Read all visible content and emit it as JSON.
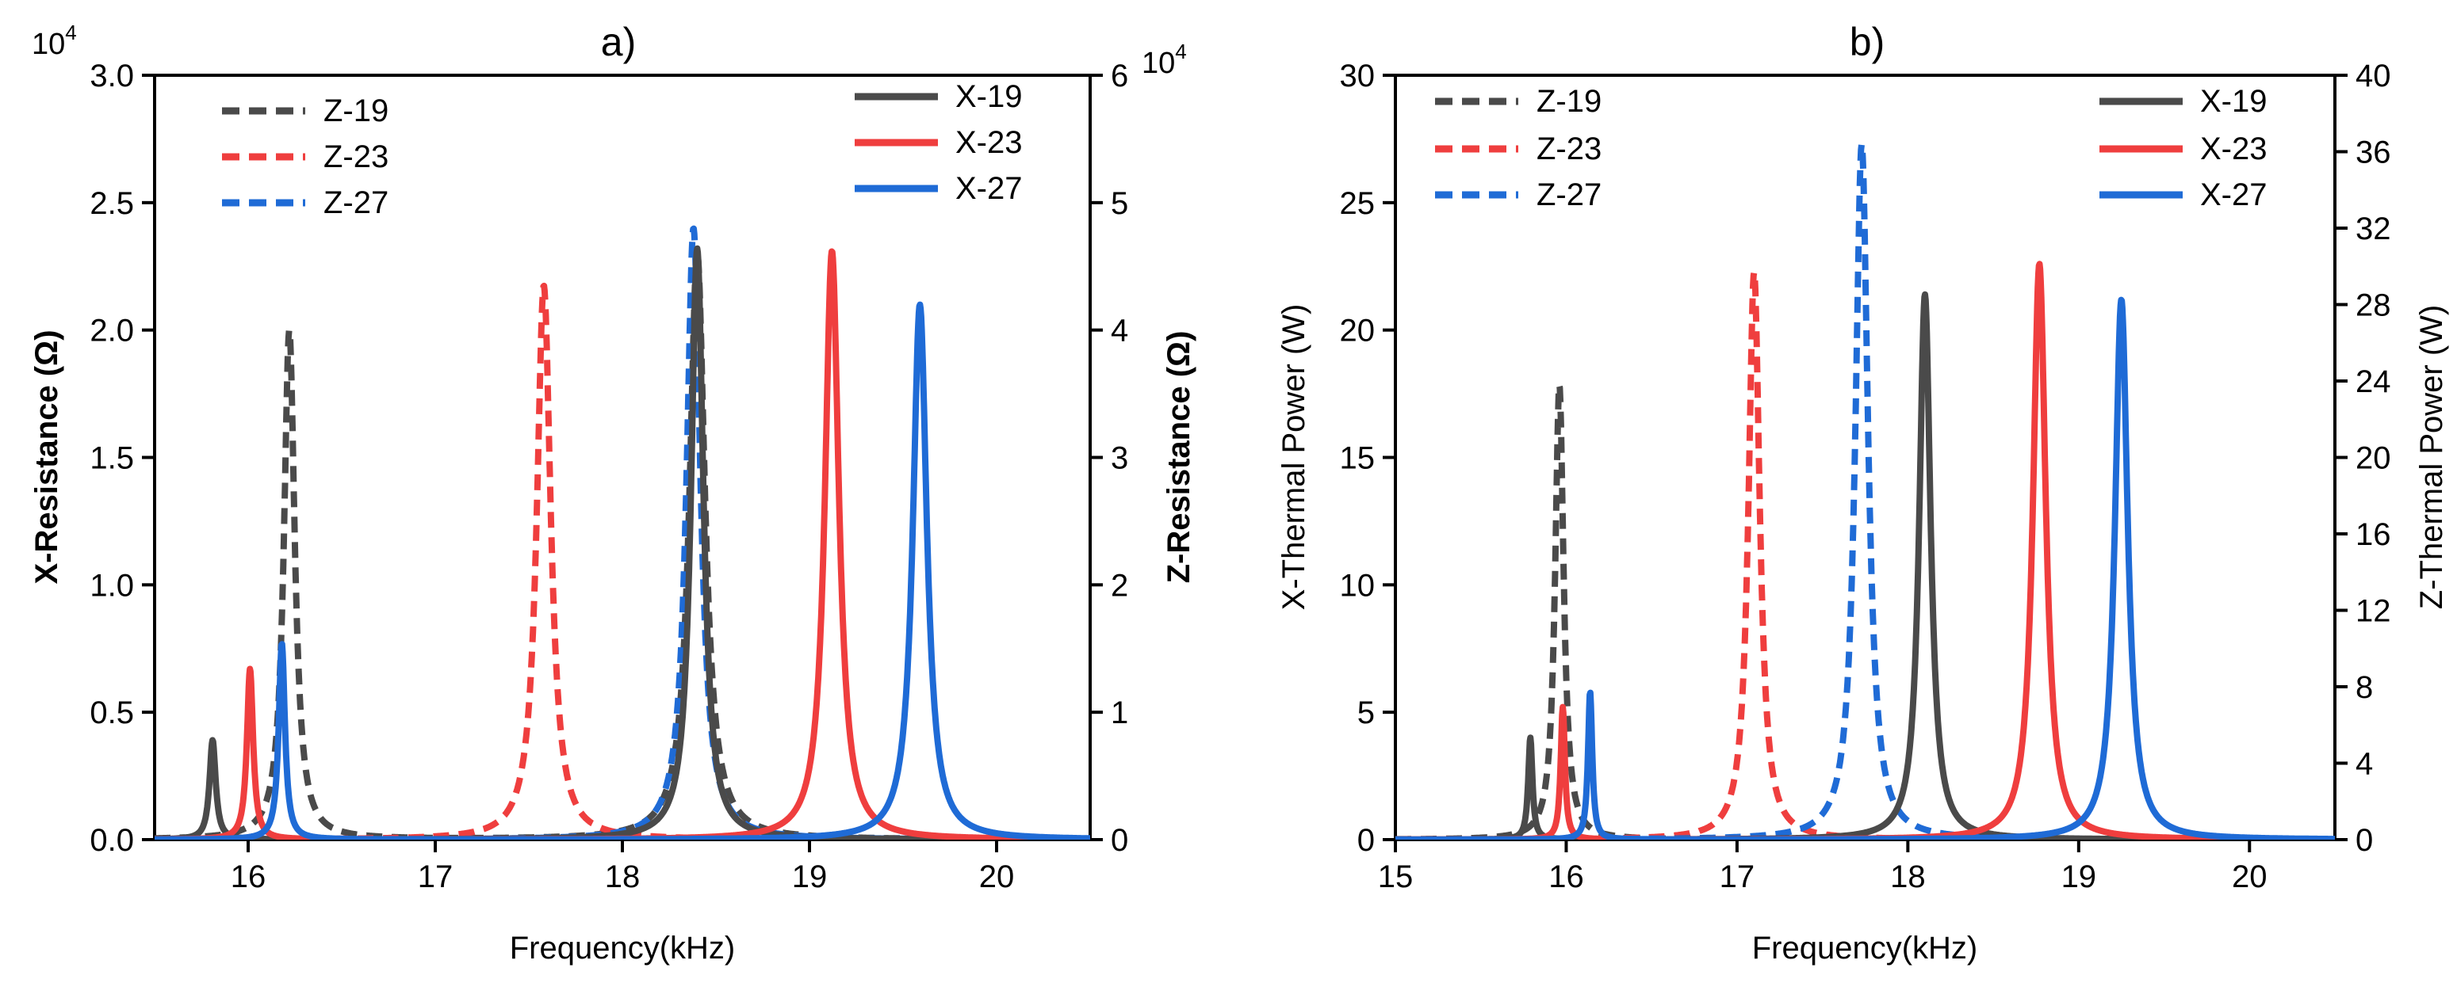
{
  "chart_data": [
    {
      "type": "line",
      "panel_label": "a)",
      "xlabel": "Frequency(kHz)",
      "ylabel": "X-Resistance (Ω)",
      "ylabel_right": "Z-Resistance (Ω)",
      "y_multiplier": "10",
      "y_multiplier_exp": "4",
      "y_right_multiplier": "10",
      "y_right_multiplier_exp": "4",
      "xlim": [
        15.5,
        20.5
      ],
      "ylim": [
        0,
        3.0
      ],
      "ylim_right": [
        0,
        6
      ],
      "x_ticks": [
        16,
        17,
        18,
        19,
        20
      ],
      "y_ticks": [
        0.0,
        0.5,
        1.0,
        1.5,
        2.0,
        2.5,
        3.0
      ],
      "y_tick_labels": [
        "0.0",
        "0.5",
        "1.0",
        "1.5",
        "2.0",
        "2.5",
        "3.0"
      ],
      "y_right_ticks": [
        0,
        1,
        2,
        3,
        4,
        5,
        6
      ],
      "grid": false,
      "legend_left_placement": "top-left",
      "legend_right_placement": "top-right",
      "series": [
        {
          "name": "Z-19",
          "axis": "right",
          "style": "dashed",
          "color": "#4a4a4a",
          "peaks": [
            {
              "f": 16.22,
              "amp": 4.0,
              "w": 0.035
            },
            {
              "f": 18.4,
              "amp": 4.6,
              "w": 0.05
            }
          ]
        },
        {
          "name": "Z-23",
          "axis": "right",
          "style": "dashed",
          "color": "#ef3e3e",
          "peaks": [
            {
              "f": 17.58,
              "amp": 4.35,
              "w": 0.045
            }
          ]
        },
        {
          "name": "Z-27",
          "axis": "right",
          "style": "dashed",
          "color": "#1f6bd6",
          "peaks": [
            {
              "f": 18.38,
              "amp": 4.8,
              "w": 0.045
            }
          ]
        },
        {
          "name": "X-19",
          "axis": "left",
          "style": "solid",
          "color": "#4a4a4a",
          "peaks": [
            {
              "f": 15.81,
              "amp": 0.39,
              "w": 0.02
            },
            {
              "f": 18.4,
              "amp": 2.32,
              "w": 0.04
            }
          ]
        },
        {
          "name": "X-23",
          "axis": "left",
          "style": "solid",
          "color": "#ef3e3e",
          "peaks": [
            {
              "f": 16.01,
              "amp": 0.67,
              "w": 0.02
            },
            {
              "f": 19.12,
              "amp": 2.31,
              "w": 0.045
            }
          ]
        },
        {
          "name": "X-27",
          "axis": "left",
          "style": "solid",
          "color": "#1f6bd6",
          "peaks": [
            {
              "f": 16.18,
              "amp": 0.77,
              "w": 0.02
            },
            {
              "f": 19.59,
              "amp": 2.1,
              "w": 0.045
            }
          ]
        }
      ]
    },
    {
      "type": "line",
      "panel_label": "b)",
      "xlabel": "Frequency(kHz)",
      "ylabel": "X-Thermal Power (W)",
      "ylabel_right": "Z-Thermal Power (W)",
      "xlim": [
        15,
        20.5
      ],
      "ylim": [
        0,
        30
      ],
      "ylim_right": [
        0,
        40
      ],
      "x_ticks": [
        15,
        16,
        17,
        18,
        19,
        20
      ],
      "y_ticks": [
        0,
        5,
        10,
        15,
        20,
        25,
        30
      ],
      "y_tick_labels": [
        "0",
        "5",
        "10",
        "15",
        "20",
        "25",
        "30"
      ],
      "y_right_ticks": [
        0,
        4,
        8,
        12,
        16,
        20,
        24,
        28,
        32,
        36,
        40
      ],
      "grid": false,
      "legend_left_placement": "top-left",
      "legend_right_placement": "top-right",
      "series": [
        {
          "name": "Z-19",
          "axis": "right",
          "style": "dashed",
          "color": "#4a4a4a",
          "peaks": [
            {
              "f": 15.96,
              "amp": 23.8,
              "w": 0.03
            }
          ]
        },
        {
          "name": "Z-23",
          "axis": "right",
          "style": "dashed",
          "color": "#ef3e3e",
          "peaks": [
            {
              "f": 17.1,
              "amp": 29.7,
              "w": 0.04
            }
          ]
        },
        {
          "name": "Z-27",
          "axis": "right",
          "style": "dashed",
          "color": "#1f6bd6",
          "peaks": [
            {
              "f": 17.73,
              "amp": 36.4,
              "w": 0.045
            }
          ]
        },
        {
          "name": "X-19",
          "axis": "left",
          "style": "solid",
          "color": "#4a4a4a",
          "peaks": [
            {
              "f": 15.79,
              "amp": 4.0,
              "w": 0.015
            },
            {
              "f": 18.1,
              "amp": 21.4,
              "w": 0.04
            }
          ]
        },
        {
          "name": "X-23",
          "axis": "left",
          "style": "solid",
          "color": "#ef3e3e",
          "peaks": [
            {
              "f": 15.98,
              "amp": 5.2,
              "w": 0.015
            },
            {
              "f": 18.77,
              "amp": 22.6,
              "w": 0.045
            }
          ]
        },
        {
          "name": "X-27",
          "axis": "left",
          "style": "solid",
          "color": "#1f6bd6",
          "peaks": [
            {
              "f": 16.14,
              "amp": 5.8,
              "w": 0.015
            },
            {
              "f": 19.25,
              "amp": 21.2,
              "w": 0.045
            }
          ]
        }
      ]
    }
  ]
}
